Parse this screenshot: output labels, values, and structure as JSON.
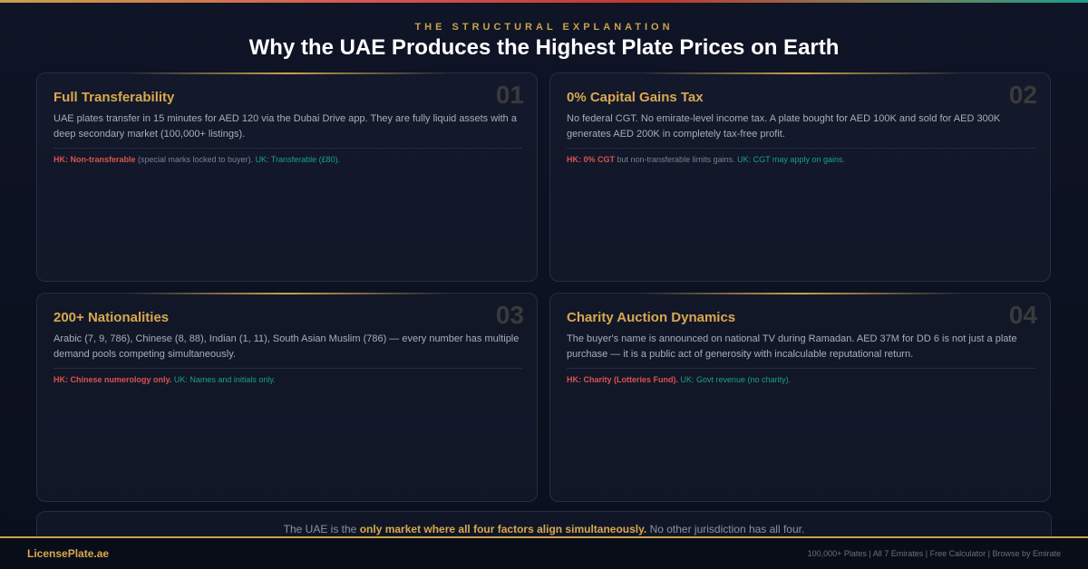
{
  "header": {
    "eyebrow": "THE STRUCTURAL EXPLANATION",
    "title": "Why the UAE Produces the Highest Plate Prices on Earth"
  },
  "cards": [
    {
      "num": "01",
      "title": "Full Transferability",
      "body": "UAE plates transfer in 15 minutes for AED 120 via the Dubai Drive app. They are fully liquid assets with a deep secondary market (100,000+ listings).",
      "hk": "HK: Non-transferable",
      "mid": " (special marks locked to buyer). ",
      "uk": "UK: Transferable (£80)."
    },
    {
      "num": "02",
      "title": "0% Capital Gains Tax",
      "body": "No federal CGT. No emirate-level income tax. A plate bought for AED 100K and sold for AED 300K generates AED 200K in completely tax-free profit.",
      "hk": "HK: 0% CGT",
      "mid": " but non-transferable limits gains. ",
      "uk": "UK: CGT may apply on gains."
    },
    {
      "num": "03",
      "title": "200+ Nationalities",
      "body": "Arabic (7, 9, 786), Chinese (8, 88), Indian (1, 11), South Asian Muslim (786) — every number has multiple demand pools competing simultaneously.",
      "hk": "HK: Chinese numerology only.",
      "mid": " ",
      "uk": "UK: Names and initials only."
    },
    {
      "num": "04",
      "title": "Charity Auction Dynamics",
      "body": "The buyer's name is announced on national TV during Ramadan. AED 37M for DD 6 is not just a plate purchase — it is a public act of generosity with incalculable reputational return.",
      "hk": "HK: Charity (Lotteries Fund).",
      "mid": " ",
      "uk": "UK: Govt revenue (no charity)."
    }
  ],
  "summary": {
    "before": "The UAE is the ",
    "highlight": "only market where all four factors align simultaneously.",
    "after": " No other jurisdiction has all four."
  },
  "footer": {
    "brand": "LicensePlate.ae",
    "links": "100,000+ Plates | All 7 Emirates | Free Calculator | Browse by Emirate"
  },
  "colors": {
    "accent_gold": "#d9a84e",
    "hk_red": "#d9534f",
    "uk_teal": "#1aa08a",
    "background": "#0d1222"
  }
}
